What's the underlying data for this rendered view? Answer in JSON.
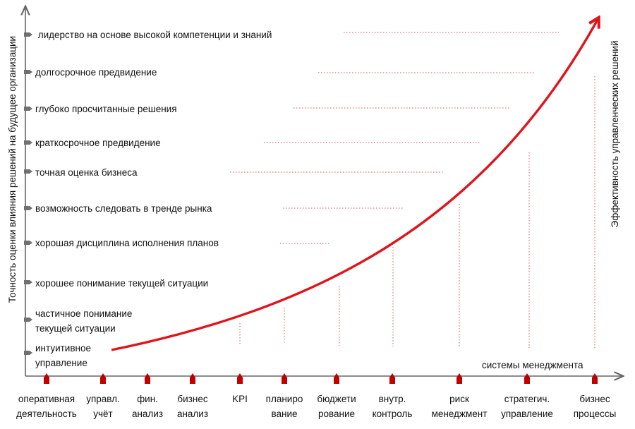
{
  "left_axis_title": "Точность оценки влияния решений на будущее организации",
  "right_axis_title": "Эффективность управленческих решений",
  "bottom_axis_title": "системы менеджмента",
  "colors": {
    "curve": "#e0141b",
    "markers": "#c00000",
    "axis": "#666666",
    "dotted": "#e07070",
    "text": "#111111"
  },
  "levels": [
    {
      "lines": [
        "интуитивное",
        "управление"
      ]
    },
    {
      "lines": [
        "частичное понимание",
        "текущей ситуации"
      ]
    },
    {
      "lines": [
        "хорошее понимание текущей ситуации"
      ]
    },
    {
      "lines": [
        "хорошая дисциплина исполнения планов"
      ]
    },
    {
      "lines": [
        "возможность следовать в тренде рынка"
      ]
    },
    {
      "lines": [
        "точная оценка бизнеса"
      ]
    },
    {
      "lines": [
        "краткосрочное предвидение"
      ]
    },
    {
      "lines": [
        "глубоко просчитанные решения"
      ]
    },
    {
      "lines": [
        "долгосрочное предвидение"
      ]
    },
    {
      "lines": [
        " лидерство на основе высокой компетенции и знаний"
      ]
    }
  ],
  "systems": [
    {
      "lines": [
        "оперативная",
        "деятельность"
      ]
    },
    {
      "lines": [
        "управл.",
        "учёт"
      ]
    },
    {
      "lines": [
        "фин.",
        "анализ"
      ]
    },
    {
      "lines": [
        "бизнес",
        "анализ"
      ]
    },
    {
      "lines": [
        "KPI"
      ]
    },
    {
      "lines": [
        "планиро",
        "вание"
      ]
    },
    {
      "lines": [
        "бюджети",
        "рование"
      ]
    },
    {
      "lines": [
        "внутр.",
        "контроль"
      ]
    },
    {
      "lines": [
        "риск",
        "менеджмент"
      ]
    },
    {
      "lines": [
        "стратегич.",
        "управление"
      ]
    },
    {
      "lines": [
        "бизнес",
        "процессы"
      ]
    }
  ]
}
